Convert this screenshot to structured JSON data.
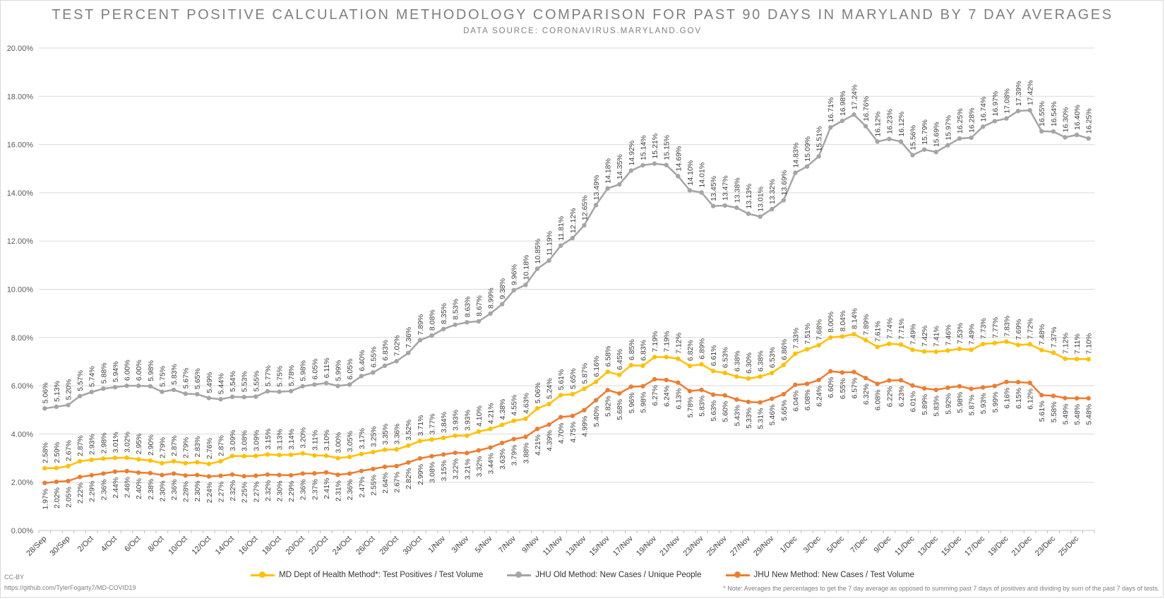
{
  "title": "TEST PERCENT POSITIVE CALCULATION METHODOLOGY COMPARISON FOR PAST 90 DAYS IN MARYLAND BY 7 DAY AVERAGES",
  "subtitle": "DATA SOURCE: CORONAVIRUS.MARYLAND.GOV",
  "footer": {
    "license": "CC-BY",
    "repo": "https://github.com/TylerFogarty7/MD-COVID19",
    "note": "* Note: Averages the percentages to get the 7 day average as opposed to summing past 7 days of positives and dividing by sum of the past 7 days of tests."
  },
  "chart_data": {
    "type": "line",
    "title": "TEST PERCENT POSITIVE CALCULATION METHODOLOGY COMPARISON FOR PAST 90 DAYS IN MARYLAND BY 7 DAY AVERAGES",
    "subtitle": "DATA SOURCE: CORONAVIRUS.MARYLAND.GOV",
    "xlabel": "",
    "ylabel": "",
    "ylim": [
      0,
      20
    ],
    "y_ticks": [
      "0.00%",
      "2.00%",
      "4.00%",
      "6.00%",
      "8.00%",
      "10.00%",
      "12.00%",
      "14.00%",
      "16.00%",
      "18.00%",
      "20.00%"
    ],
    "grid": true,
    "legend_position": "bottom",
    "x_tick_labels": [
      "28/Sep",
      "30/Sep",
      "2/Oct",
      "4/Oct",
      "6/Oct",
      "8/Oct",
      "10/Oct",
      "12/Oct",
      "14/Oct",
      "16/Oct",
      "18/Oct",
      "20/Oct",
      "22/Oct",
      "24/Oct",
      "26/Oct",
      "28/Oct",
      "30/Oct",
      "1/Nov",
      "3/Nov",
      "5/Nov",
      "7/Nov",
      "9/Nov",
      "11/Nov",
      "13/Nov",
      "15/Nov",
      "17/Nov",
      "19/Nov",
      "21/Nov",
      "23/Nov",
      "25/Nov",
      "27/Nov",
      "29/Nov",
      "1/Dec",
      "3/Dec",
      "5/Dec",
      "7/Dec",
      "9/Dec",
      "11/Dec",
      "13/Dec",
      "15/Dec",
      "17/Dec",
      "19/Dec",
      "21/Dec",
      "23/Dec",
      "25/Dec"
    ],
    "series": [
      {
        "name": "MD Dept of Health Method*: Test Positives / Test Volume",
        "color": "#ffc000",
        "values": [
          2.58,
          2.59,
          2.67,
          2.87,
          2.93,
          2.98,
          3.01,
          3.02,
          2.95,
          2.9,
          2.79,
          2.87,
          2.79,
          2.83,
          2.76,
          2.87,
          3.09,
          3.08,
          3.09,
          3.15,
          3.13,
          3.14,
          3.2,
          3.11,
          3.1,
          3.0,
          3.05,
          3.17,
          3.25,
          3.35,
          3.36,
          3.52,
          3.71,
          3.77,
          3.84,
          3.93,
          3.93,
          4.1,
          4.21,
          4.38,
          4.55,
          4.63,
          5.06,
          5.24,
          5.61,
          5.65,
          5.87,
          6.16,
          6.58,
          6.45,
          6.85,
          6.83,
          7.19,
          7.19,
          7.12,
          6.82,
          6.89,
          6.61,
          6.53,
          6.38,
          6.3,
          6.38,
          6.53,
          6.86,
          7.33,
          7.51,
          7.68,
          8.0,
          8.04,
          8.14,
          7.89,
          7.61,
          7.74,
          7.71,
          7.49,
          7.42,
          7.41,
          7.46,
          7.53,
          7.49,
          7.73,
          7.77,
          7.83,
          7.69,
          7.72,
          7.48,
          7.37,
          7.12,
          7.11,
          7.1
        ]
      },
      {
        "name": "JHU Old Method: New Cases / Unique People",
        "color": "#a5a5a5",
        "values": [
          5.06,
          5.13,
          5.2,
          5.57,
          5.74,
          5.88,
          5.94,
          6.0,
          6.0,
          5.98,
          5.75,
          5.83,
          5.67,
          5.65,
          5.49,
          5.44,
          5.54,
          5.53,
          5.55,
          5.77,
          5.75,
          5.78,
          5.98,
          6.05,
          6.11,
          5.99,
          6.05,
          6.4,
          6.55,
          6.83,
          7.02,
          7.36,
          7.89,
          8.08,
          8.35,
          8.53,
          8.63,
          8.67,
          8.99,
          9.38,
          9.96,
          10.18,
          10.85,
          11.19,
          11.81,
          12.12,
          12.65,
          13.49,
          14.18,
          14.35,
          14.92,
          15.14,
          15.21,
          15.15,
          14.69,
          14.1,
          14.01,
          13.45,
          13.47,
          13.38,
          13.13,
          13.01,
          13.32,
          13.69,
          14.83,
          15.09,
          15.51,
          16.71,
          16.98,
          17.24,
          16.76,
          16.12,
          16.23,
          16.12,
          15.56,
          15.79,
          15.69,
          15.97,
          16.25,
          16.28,
          16.74,
          16.97,
          17.08,
          17.39,
          17.42,
          16.55,
          16.54,
          16.3,
          16.4,
          16.25
        ]
      },
      {
        "name": "JHU New Method: New Cases / Test Volume",
        "color": "#ed7d31",
        "values": [
          1.97,
          2.02,
          2.05,
          2.22,
          2.29,
          2.36,
          2.44,
          2.46,
          2.4,
          2.38,
          2.3,
          2.36,
          2.28,
          2.3,
          2.24,
          2.27,
          2.32,
          2.25,
          2.27,
          2.32,
          2.3,
          2.29,
          2.36,
          2.37,
          2.41,
          2.31,
          2.36,
          2.47,
          2.55,
          2.64,
          2.67,
          2.82,
          2.99,
          3.08,
          3.15,
          3.22,
          3.21,
          3.32,
          3.44,
          3.63,
          3.79,
          3.88,
          4.21,
          4.39,
          4.7,
          4.75,
          4.99,
          5.4,
          5.82,
          5.68,
          5.96,
          5.98,
          6.27,
          6.24,
          6.13,
          5.78,
          5.83,
          5.63,
          5.6,
          5.43,
          5.33,
          5.31,
          5.46,
          5.65,
          6.04,
          6.08,
          6.24,
          6.6,
          6.55,
          6.57,
          6.32,
          6.08,
          6.22,
          6.23,
          6.01,
          5.89,
          5.83,
          5.92,
          5.98,
          5.87,
          5.93,
          5.99,
          6.16,
          6.15,
          6.12,
          5.61,
          5.58,
          5.49,
          5.48,
          5.48
        ]
      }
    ]
  }
}
